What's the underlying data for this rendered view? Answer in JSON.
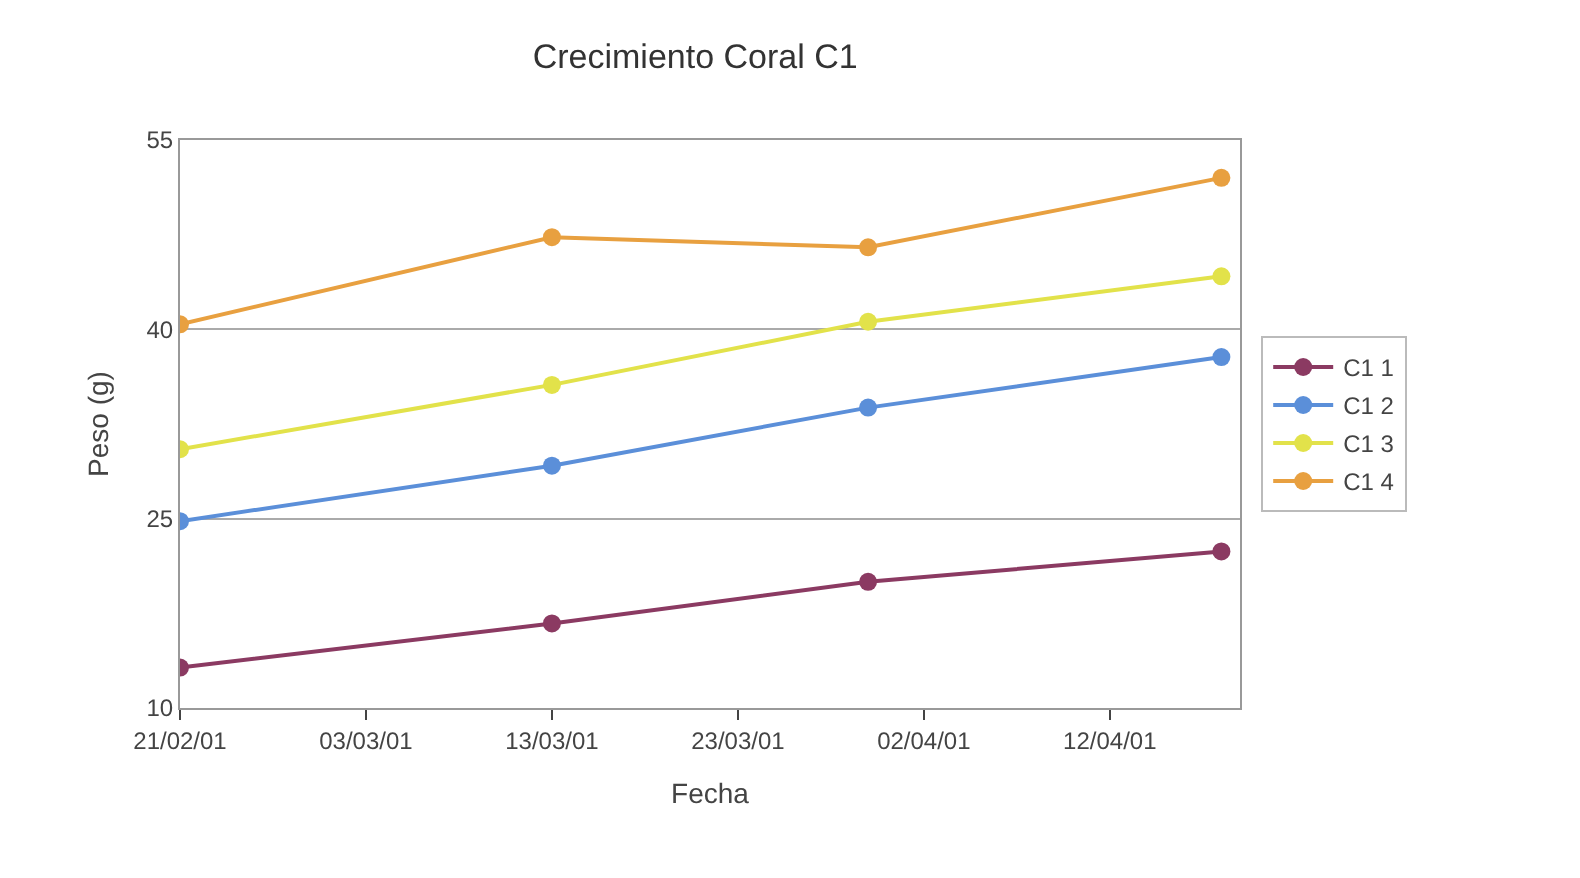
{
  "chart_data": {
    "type": "line",
    "title": "Crecimiento Coral C1",
    "xlabel": "Fecha",
    "ylabel": "Peso (g)",
    "x": [
      "--02-21",
      "--03-13",
      "--03-30",
      "--04-18"
    ],
    "series": [
      {
        "name": "C1 1",
        "color": "#8b3a62",
        "values": [
          13.2,
          16.7,
          20.0,
          22.4
        ]
      },
      {
        "name": "C1 2",
        "color": "#5b8fd9",
        "values": [
          24.8,
          29.2,
          33.8,
          37.8
        ]
      },
      {
        "name": "C1 3",
        "color": "#e2e24a",
        "values": [
          30.5,
          35.6,
          40.6,
          44.2
        ]
      },
      {
        "name": "C1 4",
        "color": "#e8a040",
        "values": [
          40.4,
          47.3,
          46.5,
          52.0
        ]
      }
    ],
    "xlim": [
      "--02-21",
      "--04-19"
    ],
    "xticks": [
      {
        "value": "--02-21",
        "label": "21/02/01"
      },
      {
        "value": "--03-03",
        "label": "03/03/01"
      },
      {
        "value": "--03-13",
        "label": "13/03/01"
      },
      {
        "value": "--03-23",
        "label": "23/03/01"
      },
      {
        "value": "--04-02",
        "label": "02/04/01"
      },
      {
        "value": "--04-12",
        "label": "12/04/01"
      }
    ],
    "ylim": [
      10,
      55
    ],
    "yticks": [
      10,
      25,
      40,
      55
    ],
    "grid": "y",
    "legend": "right",
    "marker": "circle",
    "line_style": "solid"
  }
}
